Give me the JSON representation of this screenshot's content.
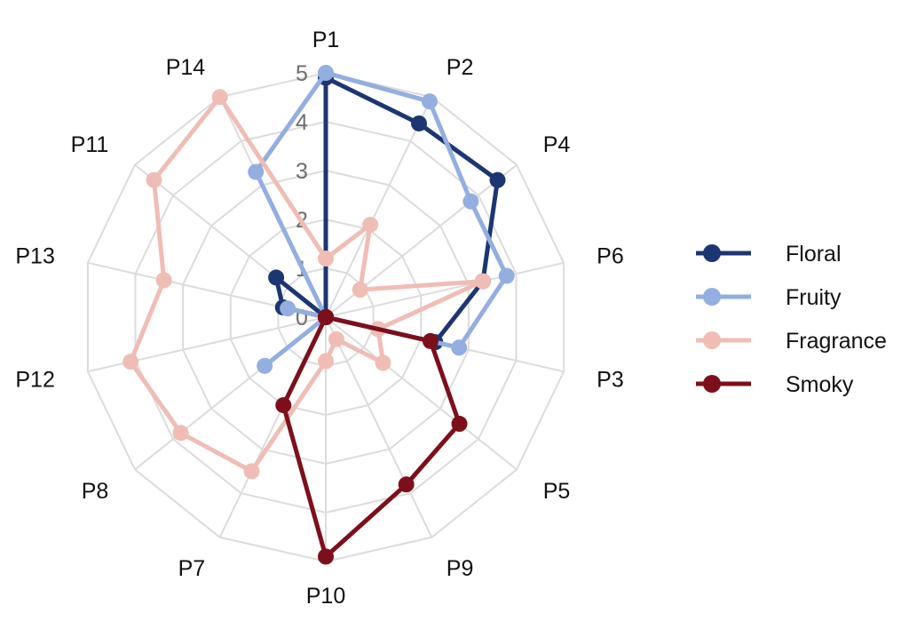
{
  "chart_data": {
    "type": "radar",
    "categories": [
      "P1",
      "P2",
      "P4",
      "P6",
      "P3",
      "P5",
      "P9",
      "P10",
      "P7",
      "P8",
      "P12",
      "P13",
      "P11",
      "P14"
    ],
    "r_range": [
      0,
      5
    ],
    "r_ticks": [
      "0",
      "1",
      "2",
      "3",
      "4",
      "5"
    ],
    "grid": true,
    "legend_position": "right",
    "series": [
      {
        "name": "Floral",
        "color": "#1c3672",
        "values": [
          4.9,
          4.4,
          4.5,
          3.3,
          2.3,
          0,
          0,
          0,
          0,
          0,
          0,
          0.9,
          1.3,
          0
        ]
      },
      {
        "name": "Fruity",
        "color": "#93aee0",
        "values": [
          5.0,
          4.9,
          3.8,
          3.8,
          2.8,
          0,
          0,
          0,
          0,
          1.6,
          0,
          0.8,
          0,
          3.3
        ]
      },
      {
        "name": "Fragrance",
        "color": "#f0bdb5",
        "values": [
          1.2,
          2.1,
          0.9,
          3.3,
          1.1,
          1.5,
          0.5,
          0.9,
          3.5,
          3.8,
          4.1,
          3.4,
          4.5,
          5.0
        ]
      },
      {
        "name": "Smoky",
        "color": "#7d0f1b",
        "values": [
          0,
          0,
          0,
          0,
          2.2,
          3.5,
          3.8,
          4.9,
          2.0,
          0,
          0,
          0,
          0,
          0
        ]
      }
    ]
  }
}
